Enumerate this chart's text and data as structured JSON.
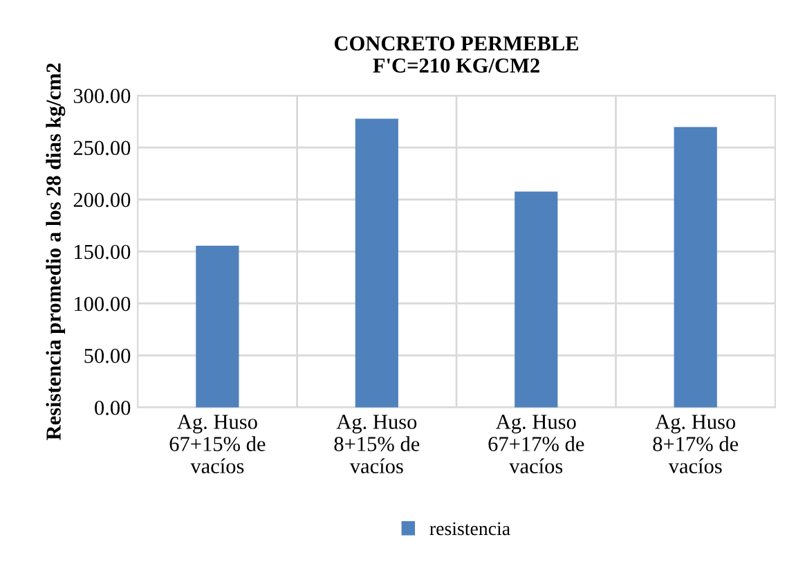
{
  "chart_data": {
    "type": "bar",
    "title": "CONCRETO PERMEBLE\nF'C=210 KG/CM2",
    "ylabel": "Resistencia promedio a los 28 dias kg/cm2",
    "categories": [
      "Ag. Huso\n67+15% de\nvacíos",
      "Ag. Huso\n8+15% de\nvacíos",
      "Ag. Huso\n67+17% de\nvacíos",
      "Ag. Huso\n8+17% de\nvacíos"
    ],
    "series": [
      {
        "name": "resistencia",
        "color": "#4f81bd",
        "values": [
          155.6,
          277.8,
          207.6,
          269.8
        ]
      }
    ],
    "ylim": [
      0,
      300
    ],
    "yticks": [
      {
        "value": 0,
        "label": "0.00"
      },
      {
        "value": 50,
        "label": "50.00"
      },
      {
        "value": 100,
        "label": "100.00"
      },
      {
        "value": 150,
        "label": "150.00"
      },
      {
        "value": 200,
        "label": "200.00"
      },
      {
        "value": 250,
        "label": "250.00"
      },
      {
        "value": 300,
        "label": "300.00"
      }
    ],
    "grid": true,
    "legend": "bottom"
  }
}
